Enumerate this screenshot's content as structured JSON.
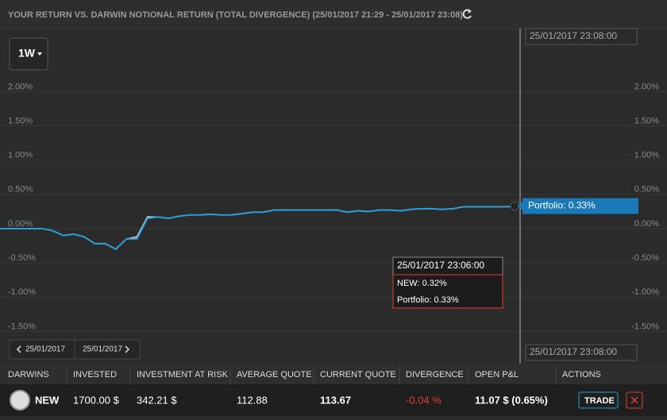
{
  "header": {
    "title": "YOUR RETURN VS. DARWIN NOTIONAL RETURN (TOTAL DIVERGENCE) (25/01/2017 21:29 - 25/01/2017 23:08)"
  },
  "controls": {
    "period": "1W",
    "prev_date": "25/01/2017",
    "next_date": "25/01/2017"
  },
  "chart_data": {
    "type": "line",
    "categories": [
      null,
      null,
      null,
      null,
      null,
      null,
      null,
      null,
      null,
      null,
      null,
      null,
      null,
      null,
      null,
      null,
      null,
      null,
      null,
      null,
      null,
      null,
      null,
      null,
      null,
      null,
      null,
      null,
      null,
      null,
      null,
      null,
      null,
      null,
      null,
      null,
      null,
      null,
      null,
      null,
      null,
      null,
      null,
      null,
      null,
      null,
      null,
      null,
      null,
      null
    ],
    "series": [
      {
        "name": "NEW",
        "color": "#e8e8e8",
        "values": [
          0,
          0,
          0,
          0,
          0,
          -0.03,
          -0.1,
          -0.08,
          -0.12,
          -0.22,
          -0.22,
          -0.3,
          -0.15,
          -0.12,
          0.17,
          0.17,
          0.15,
          0.18,
          0.2,
          0.2,
          0.21,
          0.2,
          0.2,
          0.22,
          0.24,
          0.24,
          0.27,
          0.27,
          0.27,
          0.27,
          0.27,
          0.27,
          0.27,
          0.24,
          0.26,
          0.25,
          0.27,
          0.27,
          0.26,
          0.28,
          0.29,
          0.29,
          0.28,
          0.29,
          0.32,
          0.32,
          0.32,
          0.32,
          0.32,
          0.32
        ]
      },
      {
        "name": "Portfolio",
        "color": "#2a9fd6",
        "values": [
          0,
          0,
          0,
          0,
          0,
          -0.03,
          -0.1,
          -0.08,
          -0.12,
          -0.22,
          -0.22,
          -0.3,
          -0.15,
          -0.15,
          0.15,
          0.17,
          0.15,
          0.18,
          0.2,
          0.2,
          0.21,
          0.2,
          0.2,
          0.22,
          0.24,
          0.24,
          0.27,
          0.27,
          0.27,
          0.27,
          0.27,
          0.27,
          0.27,
          0.24,
          0.26,
          0.25,
          0.27,
          0.27,
          0.26,
          0.28,
          0.29,
          0.29,
          0.28,
          0.29,
          0.32,
          0.32,
          0.32,
          0.32,
          0.32,
          0.33
        ]
      }
    ],
    "ylim": [
      -2.04,
      2.85
    ],
    "yticks": [
      {
        "value": 2,
        "label": "2.00%"
      },
      {
        "value": 1.5,
        "label": "1.50%"
      },
      {
        "value": 1,
        "label": "1.00%"
      },
      {
        "value": 0.5,
        "label": "0.50%"
      },
      {
        "value": 0,
        "label": "0.00%"
      },
      {
        "value": -0.5,
        "label": "-0.50%"
      },
      {
        "value": -1,
        "label": "-1.00%"
      },
      {
        "value": -1.5,
        "label": "-1.50%"
      }
    ],
    "grid": true,
    "crosshair_top": "25/01/2017 23:08:00",
    "crosshair_bottom": "25/01/2017 23:08:00",
    "end_label": "Portfolio: 0.33%",
    "tooltip": {
      "time": "25/01/2017 23:06:00",
      "lines": [
        "NEW: 0.32%",
        "Portfolio: 0.33%"
      ]
    }
  },
  "table": {
    "headers": [
      "DARWINS",
      "INVESTED",
      "INVESTMENT AT RISK",
      "AVERAGE QUOTE",
      "CURRENT QUOTE",
      "DIVERGENCE",
      "OPEN P&L",
      "ACTIONS"
    ],
    "rows": [
      [
        "NEW",
        "1700.00 $",
        "342.21 $",
        "112.88",
        "113.67",
        "-0.04 %",
        "11.07 $  (0.65%)",
        "TRADE"
      ]
    ]
  }
}
